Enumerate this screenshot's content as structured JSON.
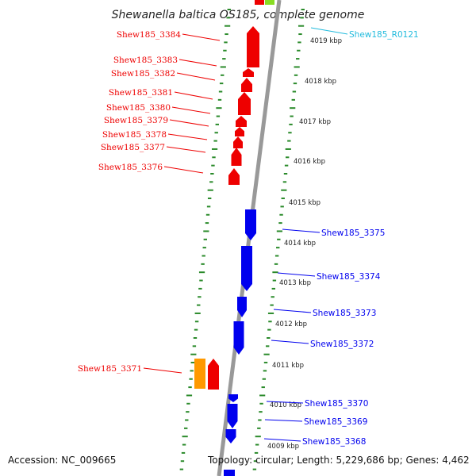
{
  "title": "Shewanella baltica OS185, complete genome",
  "accession": "Accession: NC_009665",
  "topology": "Topology: circular; Length: 5,229,686 bp; Genes: 4,462",
  "colors": {
    "forward": "#ee0000",
    "reverse": "#0000ee",
    "rna": "#22bbdd",
    "pseudo": "#ff9900",
    "ticks": "#2a8a2a"
  },
  "ruler": [
    {
      "label": "4019 kbp"
    },
    {
      "label": "4018 kbp"
    },
    {
      "label": "4017 kbp"
    },
    {
      "label": "4016 kbp"
    },
    {
      "label": "4015 kbp"
    },
    {
      "label": "4014 kbp"
    },
    {
      "label": "4013 kbp"
    },
    {
      "label": "4012 kbp"
    },
    {
      "label": "4011 kbp"
    },
    {
      "label": "4010 kbp"
    },
    {
      "label": "4009 kbp"
    }
  ],
  "genes": [
    {
      "name": "Shew185_R0121",
      "color": "rna"
    },
    {
      "name": "Shew185_3384",
      "color": "forward"
    },
    {
      "name": "Shew185_3383",
      "color": "forward"
    },
    {
      "name": "Shew185_3382",
      "color": "forward"
    },
    {
      "name": "Shew185_3381",
      "color": "forward"
    },
    {
      "name": "Shew185_3380",
      "color": "forward"
    },
    {
      "name": "Shew185_3379",
      "color": "forward"
    },
    {
      "name": "Shew185_3378",
      "color": "forward"
    },
    {
      "name": "Shew185_3377",
      "color": "forward"
    },
    {
      "name": "Shew185_3376",
      "color": "forward"
    },
    {
      "name": "Shew185_3375",
      "color": "reverse"
    },
    {
      "name": "Shew185_3374",
      "color": "reverse"
    },
    {
      "name": "Shew185_3373",
      "color": "reverse"
    },
    {
      "name": "Shew185_3372",
      "color": "reverse"
    },
    {
      "name": "Shew185_3371",
      "color": "forward"
    },
    {
      "name": "Shew185_3370",
      "color": "reverse"
    },
    {
      "name": "Shew185_3369",
      "color": "reverse"
    },
    {
      "name": "Shew185_3368",
      "color": "reverse"
    }
  ]
}
